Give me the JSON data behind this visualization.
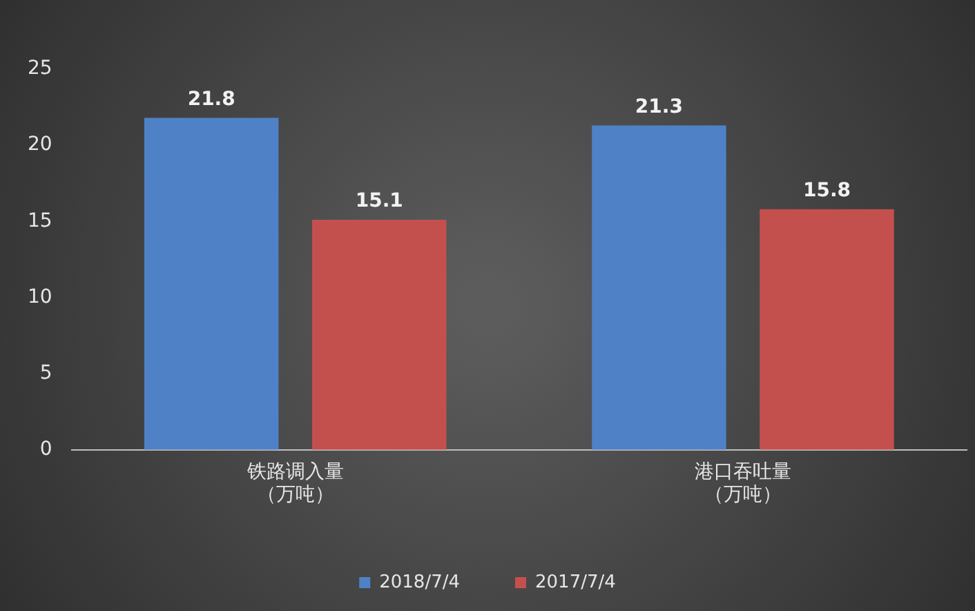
{
  "chart_data": {
    "type": "bar",
    "categories": [
      "铁路调入量（万吨）",
      "港口吞吐量（万吨）"
    ],
    "series": [
      {
        "name": "2018/7/4",
        "color": "#4f81c7",
        "values": [
          21.8,
          21.3
        ]
      },
      {
        "name": "2017/7/4",
        "color": "#c4504e",
        "values": [
          15.1,
          15.8
        ]
      }
    ],
    "ylim": [
      0,
      25
    ],
    "yticks": [
      0,
      5,
      10,
      15,
      20,
      25
    ],
    "grid": false,
    "legend": "bottom",
    "data_labels": true
  }
}
